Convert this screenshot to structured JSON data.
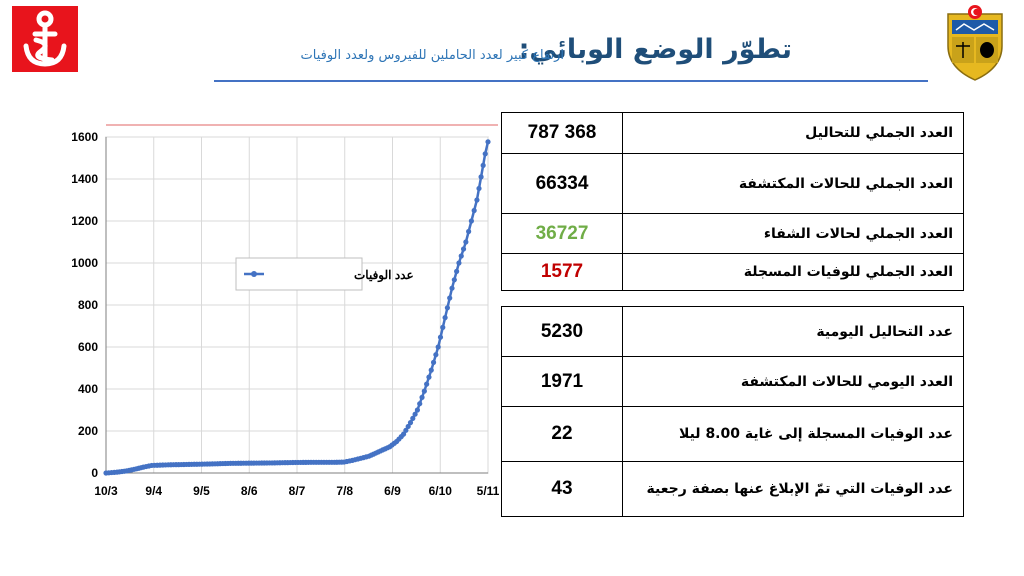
{
  "header": {
    "title": "تطوّر الوضع الوبائي:",
    "subtitle": "ارتفاع كبير لعدد الحاملين للفيروس  ولعدد الوفيات"
  },
  "colors": {
    "logo_red": "#e8141c",
    "title_blue": "#1f4e79",
    "series_blue": "#4472c4",
    "recovered_green": "#70ad47",
    "deaths_red": "#c00000"
  },
  "totals_table": [
    {
      "value": "787 368",
      "label": "العدد الجملي للتحاليل",
      "color": "#000000"
    },
    {
      "value": "66334",
      "label": "العدد الجملي للحالات المكتشفة",
      "color": "#000000"
    },
    {
      "value": "36727",
      "label": "العدد الجملي لحالات الشفاء",
      "color": "#70ad47"
    },
    {
      "value": "1577",
      "label": "العدد الجملي للوفيات المسجلة",
      "color": "#c00000"
    }
  ],
  "daily_table": [
    {
      "value": "5230",
      "label": "عدد التحاليل اليومية"
    },
    {
      "value": "1971",
      "label": "العدد اليومي للحالات المكتشفة"
    },
    {
      "value": "22",
      "label": "عدد الوفيات المسجلة إلى غاية 8.00 ليلا"
    },
    {
      "value": "43",
      "label": "عدد الوفيات التي تمّ الإبلاغ عنها بصفة رجعية"
    }
  ],
  "chart_data": {
    "type": "line",
    "title": "",
    "xlabel": "",
    "ylabel": "",
    "ylim": [
      0,
      1600
    ],
    "yticks": [
      0,
      200,
      400,
      600,
      800,
      1000,
      1200,
      1400,
      1600
    ],
    "xtick_labels": [
      "10/3",
      "9/4",
      "9/5",
      "8/6",
      "8/7",
      "7/8",
      "6/9",
      "6/10",
      "5/11"
    ],
    "grid": true,
    "legend_position": "center",
    "series": [
      {
        "name": "عدد الوفيات",
        "color": "#4472c4",
        "points": [
          [
            0,
            0
          ],
          [
            8,
            4
          ],
          [
            15,
            10
          ],
          [
            22,
            20
          ],
          [
            27,
            28
          ],
          [
            33,
            36
          ],
          [
            45,
            39
          ],
          [
            60,
            41
          ],
          [
            75,
            43
          ],
          [
            90,
            46
          ],
          [
            105,
            47
          ],
          [
            120,
            48
          ],
          [
            135,
            50
          ],
          [
            150,
            51
          ],
          [
            165,
            51
          ],
          [
            172,
            52
          ],
          [
            178,
            60
          ],
          [
            184,
            70
          ],
          [
            190,
            80
          ],
          [
            195,
            95
          ],
          [
            200,
            110
          ],
          [
            205,
            125
          ],
          [
            210,
            150
          ],
          [
            215,
            185
          ],
          [
            220,
            240
          ],
          [
            225,
            300
          ],
          [
            230,
            390
          ],
          [
            235,
            490
          ],
          [
            240,
            600
          ],
          [
            245,
            740
          ],
          [
            250,
            880
          ],
          [
            255,
            1000
          ],
          [
            260,
            1100
          ],
          [
            264,
            1200
          ],
          [
            268,
            1300
          ],
          [
            271,
            1410
          ],
          [
            274,
            1520
          ],
          [
            276,
            1577
          ]
        ]
      }
    ]
  }
}
